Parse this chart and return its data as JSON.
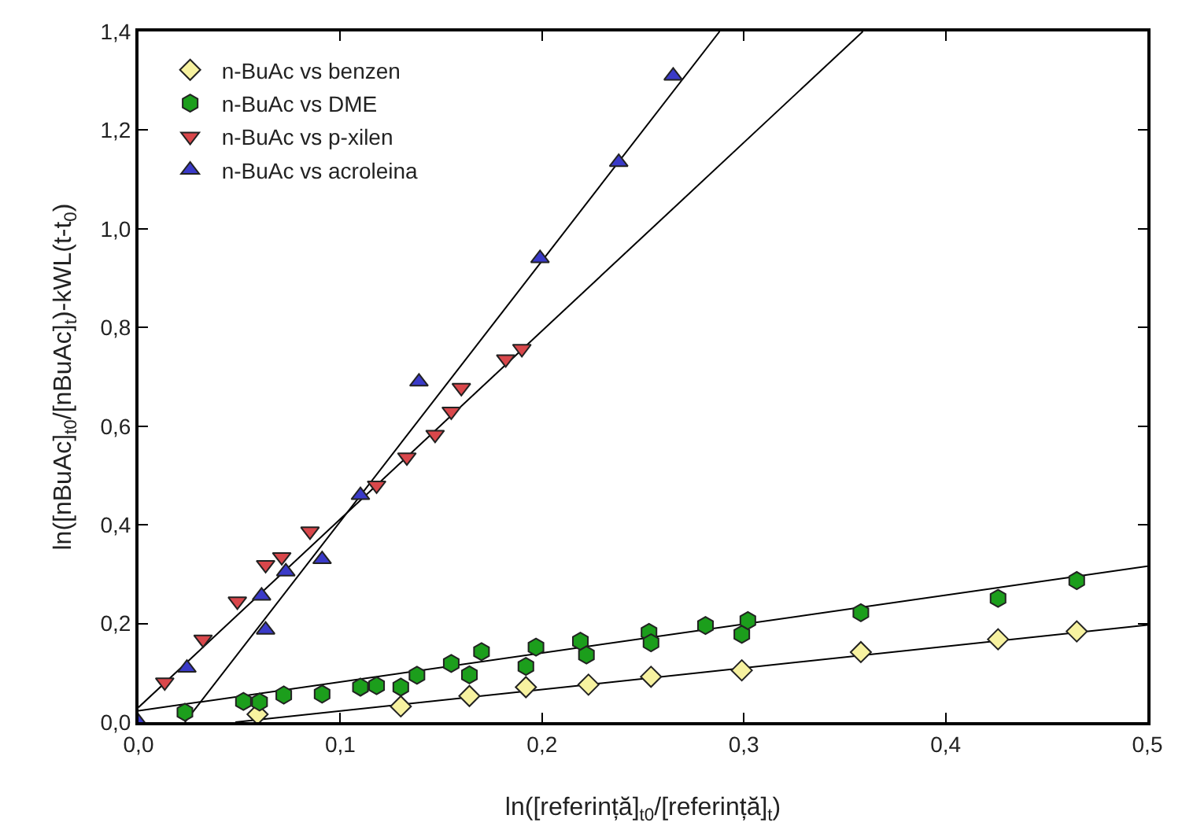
{
  "chart_data": {
    "type": "scatter",
    "xlabel": "ln([referință]$_{t0}$/[referință]$_{t}$)",
    "ylabel": "ln([nBuAc]$_{t0}$/[nBuAc]$_{t}$)-kWL(t-t$_{0}$)",
    "xlim": [
      0,
      0.5
    ],
    "ylim": [
      0,
      1.4
    ],
    "xticks": [
      {
        "value": 0,
        "label": "0,0"
      },
      {
        "value": 0.1,
        "label": "0,1"
      },
      {
        "value": 0.2,
        "label": "0,2"
      },
      {
        "value": 0.3,
        "label": "0,3"
      },
      {
        "value": 0.4,
        "label": "0,4"
      },
      {
        "value": 0.5,
        "label": "0,5"
      }
    ],
    "yticks": [
      {
        "value": 0,
        "label": "0,0"
      },
      {
        "value": 0.2,
        "label": "0,2"
      },
      {
        "value": 0.4,
        "label": "0,4"
      },
      {
        "value": 0.6,
        "label": "0,6"
      },
      {
        "value": 0.8,
        "label": "0,8"
      },
      {
        "value": 1.0,
        "label": "1,0"
      },
      {
        "value": 1.2,
        "label": "1,2"
      },
      {
        "value": 1.4,
        "label": "1,4"
      }
    ],
    "grid": false,
    "legend": "top left",
    "series": [
      {
        "name": "n-BuAc vs benzen",
        "color": "#f7f2a0",
        "marker": "diamond",
        "x": [
          0.059,
          0.13,
          0.164,
          0.192,
          0.223,
          0.254,
          0.299,
          0.358,
          0.426,
          0.465
        ],
        "values": [
          0.016,
          0.032,
          0.053,
          0.071,
          0.076,
          0.092,
          0.105,
          0.142,
          0.168,
          0.184
        ]
      },
      {
        "name": "n-BuAc vs DME",
        "color": "#1c9e1c",
        "marker": "circle",
        "x": [
          0.023,
          0.052,
          0.06,
          0.072,
          0.091,
          0.11,
          0.118,
          0.13,
          0.138,
          0.155,
          0.164,
          0.17,
          0.192,
          0.197,
          0.219,
          0.222,
          0.253,
          0.254,
          0.281,
          0.299,
          0.302,
          0.358,
          0.426,
          0.465
        ],
        "values": [
          0.02,
          0.042,
          0.041,
          0.055,
          0.057,
          0.071,
          0.074,
          0.071,
          0.095,
          0.119,
          0.096,
          0.143,
          0.113,
          0.152,
          0.164,
          0.136,
          0.182,
          0.161,
          0.196,
          0.178,
          0.206,
          0.222,
          0.251,
          0.287
        ]
      },
      {
        "name": "n-BuAc vs p-xilen",
        "color": "#d9474b",
        "marker": "triangle-down",
        "x": [
          0.013,
          0.032,
          0.049,
          0.063,
          0.071,
          0.085,
          0.118,
          0.133,
          0.147,
          0.155,
          0.16,
          0.182,
          0.19
        ],
        "values": [
          0.081,
          0.168,
          0.245,
          0.319,
          0.335,
          0.387,
          0.48,
          0.537,
          0.583,
          0.63,
          0.678,
          0.736,
          0.757
        ]
      },
      {
        "name": "n-BuAc vs acroleina",
        "color": "#3a3ac8",
        "marker": "triangle",
        "x": [
          0,
          0.024,
          0.061,
          0.063,
          0.073,
          0.091,
          0.11,
          0.139,
          0.199,
          0.238,
          0.265
        ],
        "values": [
          0,
          0.11,
          0.256,
          0.187,
          0.305,
          0.33,
          0.46,
          0.69,
          0.94,
          1.135,
          1.31
        ]
      },
      {
        "type": "line",
        "color": "#000000",
        "marker": "none",
        "x": [
          0.048,
          0.5
        ],
        "values": [
          0,
          0.197
        ]
      },
      {
        "type": "line",
        "color": "#000000",
        "marker": "none",
        "x": [
          0,
          0.5
        ],
        "values": [
          0.023,
          0.316
        ]
      },
      {
        "type": "line",
        "color": "#000000",
        "marker": "none",
        "x": [
          0,
          0.359
        ],
        "values": [
          0.03,
          1.4
        ]
      },
      {
        "type": "line",
        "color": "#000000",
        "marker": "none",
        "x": [
          0.023,
          0.288
        ],
        "values": [
          0,
          1.4
        ]
      }
    ]
  }
}
